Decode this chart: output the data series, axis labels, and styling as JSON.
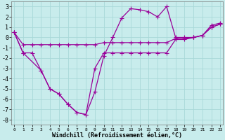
{
  "background_color": "#c8ecec",
  "grid_color": "#a8d8d8",
  "line_color": "#990099",
  "marker": "+",
  "markersize": 4,
  "linewidth": 0.9,
  "xlabel": "Windchill (Refroidissement éolien,°C)",
  "xlabel_fontsize": 6.0,
  "ytick_fontsize": 6.0,
  "xtick_fontsize": 4.5,
  "yticks": [
    3,
    2,
    1,
    0,
    -1,
    -2,
    -3,
    -4,
    -5,
    -6,
    -7,
    -8
  ],
  "xticks": [
    0,
    1,
    2,
    3,
    4,
    5,
    6,
    7,
    8,
    9,
    10,
    11,
    12,
    13,
    14,
    15,
    16,
    17,
    18,
    19,
    20,
    21,
    22,
    23
  ],
  "xlim": [
    -0.3,
    23.3
  ],
  "ylim": [
    -8.5,
    3.5
  ],
  "line1_x": [
    0,
    1,
    2,
    3,
    4,
    5,
    6,
    7,
    8,
    9,
    10,
    11,
    12,
    13,
    14,
    15,
    16,
    17,
    18,
    19,
    20,
    21,
    22,
    23
  ],
  "line1_y": [
    0.5,
    -0.7,
    -0.7,
    -0.7,
    -0.7,
    -0.7,
    -0.7,
    -0.7,
    -0.7,
    -0.7,
    -0.5,
    -0.5,
    -0.5,
    -0.5,
    -0.5,
    -0.5,
    -0.5,
    -0.5,
    -0.1,
    -0.1,
    0.0,
    0.2,
    1.0,
    1.3
  ],
  "line2_x": [
    0,
    1,
    3,
    4,
    5,
    6,
    7,
    8,
    9,
    10,
    11,
    12,
    13,
    14,
    15,
    16,
    17,
    18,
    19,
    20,
    21,
    22,
    23
  ],
  "line2_y": [
    0.5,
    -1.5,
    -3.2,
    -5.0,
    -5.5,
    -6.5,
    -7.3,
    -7.5,
    -3.0,
    -1.5,
    -1.5,
    -1.5,
    -1.5,
    -1.5,
    -1.5,
    -1.5,
    -1.5,
    -0.2,
    -0.2,
    0.0,
    0.2,
    1.0,
    1.3
  ],
  "line3_x": [
    0,
    1,
    2,
    3,
    4,
    5,
    6,
    7,
    8,
    9,
    10,
    11,
    12,
    13,
    14,
    15,
    16,
    17,
    18,
    19,
    20,
    21,
    22,
    23
  ],
  "line3_y": [
    0.5,
    -1.5,
    -1.5,
    -3.2,
    -5.0,
    -5.5,
    -6.5,
    -7.3,
    -7.5,
    -5.3,
    -1.8,
    0.0,
    1.9,
    2.8,
    2.7,
    2.5,
    2.0,
    3.0,
    0.0,
    0.0,
    0.0,
    0.2,
    1.2,
    1.4
  ]
}
